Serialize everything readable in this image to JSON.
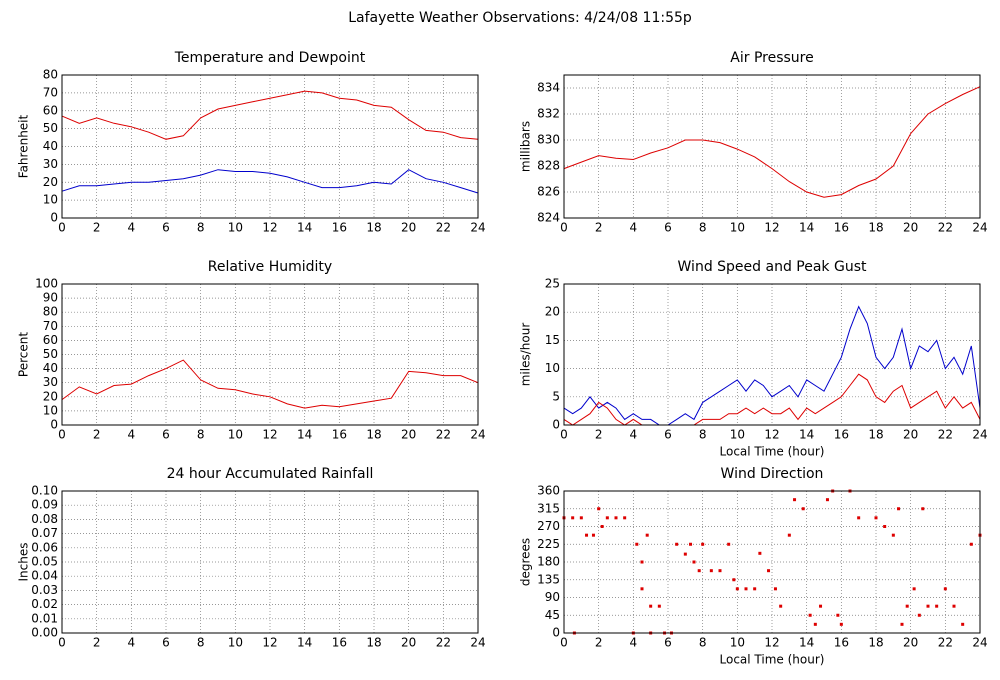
{
  "title": "Lafayette Weather Observations: 4/24/08 11:55p",
  "chart_data": [
    {
      "type": "line",
      "title": "Temperature and Dewpoint",
      "ylabel": "Fahrenheit",
      "x": [
        0,
        1,
        2,
        3,
        4,
        5,
        6,
        7,
        8,
        9,
        10,
        11,
        12,
        13,
        14,
        15,
        16,
        17,
        18,
        19,
        20,
        21,
        22,
        23,
        24
      ],
      "series": [
        {
          "color": "#dd0000",
          "values": [
            57,
            53,
            56,
            53,
            51,
            48,
            44,
            46,
            56,
            61,
            63,
            65,
            67,
            69,
            71,
            70,
            67,
            66,
            63,
            62,
            55,
            49,
            48,
            45,
            44
          ]
        },
        {
          "color": "#0000cc",
          "values": [
            15,
            18,
            18,
            19,
            20,
            20,
            21,
            22,
            24,
            27,
            26,
            26,
            25,
            23,
            20,
            17,
            17,
            18,
            20,
            19,
            27,
            22,
            20,
            17,
            14
          ]
        }
      ],
      "xlim": [
        0,
        24
      ],
      "xticks": [
        0,
        2,
        4,
        6,
        8,
        10,
        12,
        14,
        16,
        18,
        20,
        22,
        24
      ],
      "ylim": [
        0,
        80
      ],
      "yticks": [
        0,
        10,
        20,
        30,
        40,
        50,
        60,
        70,
        80
      ],
      "grid": true
    },
    {
      "type": "line",
      "title": "Air Pressure",
      "ylabel": "millibars",
      "x": [
        0,
        1,
        2,
        3,
        4,
        5,
        6,
        7,
        8,
        9,
        10,
        11,
        12,
        13,
        14,
        15,
        16,
        17,
        18,
        19,
        20,
        21,
        22,
        23,
        24
      ],
      "series": [
        {
          "color": "#dd0000",
          "values": [
            827.8,
            828.3,
            828.8,
            828.6,
            828.5,
            829,
            829.4,
            830,
            830,
            829.8,
            829.3,
            828.7,
            827.8,
            826.8,
            826,
            825.6,
            825.8,
            826.5,
            827,
            828,
            830.5,
            832,
            832.8,
            833.5,
            834.1
          ]
        }
      ],
      "xlim": [
        0,
        24
      ],
      "xticks": [
        0,
        2,
        4,
        6,
        8,
        10,
        12,
        14,
        16,
        18,
        20,
        22,
        24
      ],
      "ylim": [
        824,
        835
      ],
      "yticks": [
        824,
        826,
        828,
        830,
        832,
        834
      ],
      "grid": true
    },
    {
      "type": "line",
      "title": "Relative Humidity",
      "ylabel": "Percent",
      "x": [
        0,
        1,
        2,
        3,
        4,
        5,
        6,
        7,
        8,
        9,
        10,
        11,
        12,
        13,
        14,
        15,
        16,
        17,
        18,
        19,
        20,
        21,
        22,
        23,
        24
      ],
      "series": [
        {
          "color": "#dd0000",
          "values": [
            18,
            27,
            22,
            28,
            29,
            35,
            40,
            46,
            32,
            26,
            25,
            22,
            20,
            15,
            12,
            14,
            13,
            15,
            17,
            19,
            38,
            37,
            35,
            35,
            30
          ]
        }
      ],
      "xlim": [
        0,
        24
      ],
      "xticks": [
        0,
        2,
        4,
        6,
        8,
        10,
        12,
        14,
        16,
        18,
        20,
        22,
        24
      ],
      "ylim": [
        0,
        100
      ],
      "yticks": [
        0,
        10,
        20,
        30,
        40,
        50,
        60,
        70,
        80,
        90,
        100
      ],
      "grid": true
    },
    {
      "type": "line",
      "title": "Wind Speed and Peak Gust",
      "ylabel": "miles/hour",
      "xlabel": "Local Time (hour)",
      "x": [
        0,
        0.5,
        1,
        1.5,
        2,
        2.5,
        3,
        3.5,
        4,
        4.5,
        5,
        5.5,
        6,
        6.5,
        7,
        7.5,
        8,
        8.5,
        9,
        9.5,
        10,
        10.5,
        11,
        11.5,
        12,
        12.5,
        13,
        13.5,
        14,
        14.5,
        15,
        15.5,
        16,
        16.5,
        17,
        17.5,
        18,
        18.5,
        19,
        19.5,
        20,
        20.5,
        21,
        21.5,
        22,
        22.5,
        23,
        23.5,
        24
      ],
      "series": [
        {
          "color": "#0000cc",
          "values": [
            3,
            2,
            3,
            5,
            3,
            4,
            3,
            1,
            2,
            1,
            1,
            0,
            0,
            1,
            2,
            1,
            4,
            5,
            6,
            7,
            8,
            6,
            8,
            7,
            5,
            6,
            7,
            5,
            8,
            7,
            6,
            9,
            12,
            17,
            21,
            18,
            12,
            10,
            12,
            17,
            10,
            14,
            13,
            15,
            10,
            12,
            9,
            14,
            3
          ]
        },
        {
          "color": "#dd0000",
          "values": [
            1,
            0,
            1,
            2,
            4,
            3,
            1,
            0,
            1,
            0,
            0,
            0,
            0,
            0,
            0,
            0,
            1,
            1,
            1,
            2,
            2,
            3,
            2,
            3,
            2,
            2,
            3,
            1,
            3,
            2,
            3,
            4,
            5,
            7,
            9,
            8,
            5,
            4,
            6,
            7,
            3,
            4,
            5,
            6,
            3,
            5,
            3,
            4,
            1
          ]
        }
      ],
      "xlim": [
        0,
        24
      ],
      "xticks": [
        0,
        2,
        4,
        6,
        8,
        10,
        12,
        14,
        16,
        18,
        20,
        22,
        24
      ],
      "ylim": [
        0,
        25
      ],
      "yticks": [
        0,
        5,
        10,
        15,
        20,
        25
      ],
      "grid": true
    },
    {
      "type": "line",
      "title": "24 hour Accumulated Rainfall",
      "ylabel": "Inches",
      "x": [
        0,
        1,
        2,
        3,
        4,
        5,
        6,
        7,
        8,
        9,
        10,
        11,
        12,
        13,
        14,
        15,
        16,
        17,
        18,
        19,
        20,
        21,
        22,
        23,
        24
      ],
      "series": [
        {
          "color": "#dd0000",
          "values": [
            0,
            0,
            0,
            0,
            0,
            0,
            0,
            0,
            0,
            0,
            0,
            0,
            0,
            0,
            0,
            0,
            0,
            0,
            0,
            0,
            0,
            0,
            0,
            0,
            0
          ]
        }
      ],
      "xlim": [
        0,
        24
      ],
      "xticks": [
        0,
        2,
        4,
        6,
        8,
        10,
        12,
        14,
        16,
        18,
        20,
        22,
        24
      ],
      "ylim": [
        0,
        0.1
      ],
      "yticks": [
        {
          "value": 0,
          "label": "0.00"
        },
        {
          "value": 0.01,
          "label": "0.01"
        },
        {
          "value": 0.02,
          "label": "0.02"
        },
        {
          "value": 0.03,
          "label": "0.03"
        },
        {
          "value": 0.04,
          "label": "0.04"
        },
        {
          "value": 0.05,
          "label": "0.05"
        },
        {
          "value": 0.06,
          "label": "0.06"
        },
        {
          "value": 0.07,
          "label": "0.07"
        },
        {
          "value": 0.08,
          "label": "0.08"
        },
        {
          "value": 0.09,
          "label": "0.09"
        },
        {
          "value": 0.1,
          "label": "0.10"
        }
      ],
      "grid": true
    },
    {
      "type": "scatter",
      "title": "Wind Direction",
      "ylabel": "degrees",
      "xlabel": "Local Time (hour)",
      "color": "#dd0000",
      "x": [
        0,
        0.5,
        1,
        0.6,
        1.3,
        1.7,
        2,
        2.2,
        2.5,
        3,
        3.5,
        4,
        4.2,
        4.5,
        4.5,
        4.8,
        5,
        5.5,
        5,
        5.8,
        6.2,
        6.5,
        7,
        7.3,
        7.5,
        7.8,
        8,
        8.5,
        9,
        9.5,
        9.8,
        10,
        10.5,
        11,
        11.3,
        11.8,
        12.2,
        12.5,
        13,
        13.3,
        13.8,
        14.2,
        14.5,
        14.8,
        15.2,
        15.5,
        15.8,
        16,
        16.5,
        17,
        18,
        18.5,
        19,
        19.3,
        19.5,
        19.8,
        20.2,
        20.5,
        20.7,
        21,
        21.5,
        22,
        22.5,
        23,
        23.5,
        24
      ],
      "y": [
        292,
        292,
        292,
        0,
        248,
        248,
        315,
        270,
        292,
        292,
        292,
        0,
        225,
        112,
        180,
        248,
        68,
        68,
        0,
        0,
        0,
        225,
        200,
        225,
        180,
        158,
        225,
        158,
        158,
        225,
        135,
        112,
        112,
        112,
        202,
        158,
        112,
        68,
        248,
        338,
        315,
        45,
        22,
        68,
        338,
        360,
        45,
        22,
        360,
        292,
        292,
        270,
        248,
        315,
        22,
        68,
        112,
        45,
        315,
        68,
        68,
        112,
        68,
        22,
        225,
        248
      ],
      "xlim": [
        0,
        24
      ],
      "xticks": [
        0,
        2,
        4,
        6,
        8,
        10,
        12,
        14,
        16,
        18,
        20,
        22,
        24
      ],
      "ylim": [
        0,
        360
      ],
      "yticks": [
        0,
        45,
        90,
        135,
        180,
        225,
        270,
        315,
        360
      ],
      "grid": true
    }
  ]
}
